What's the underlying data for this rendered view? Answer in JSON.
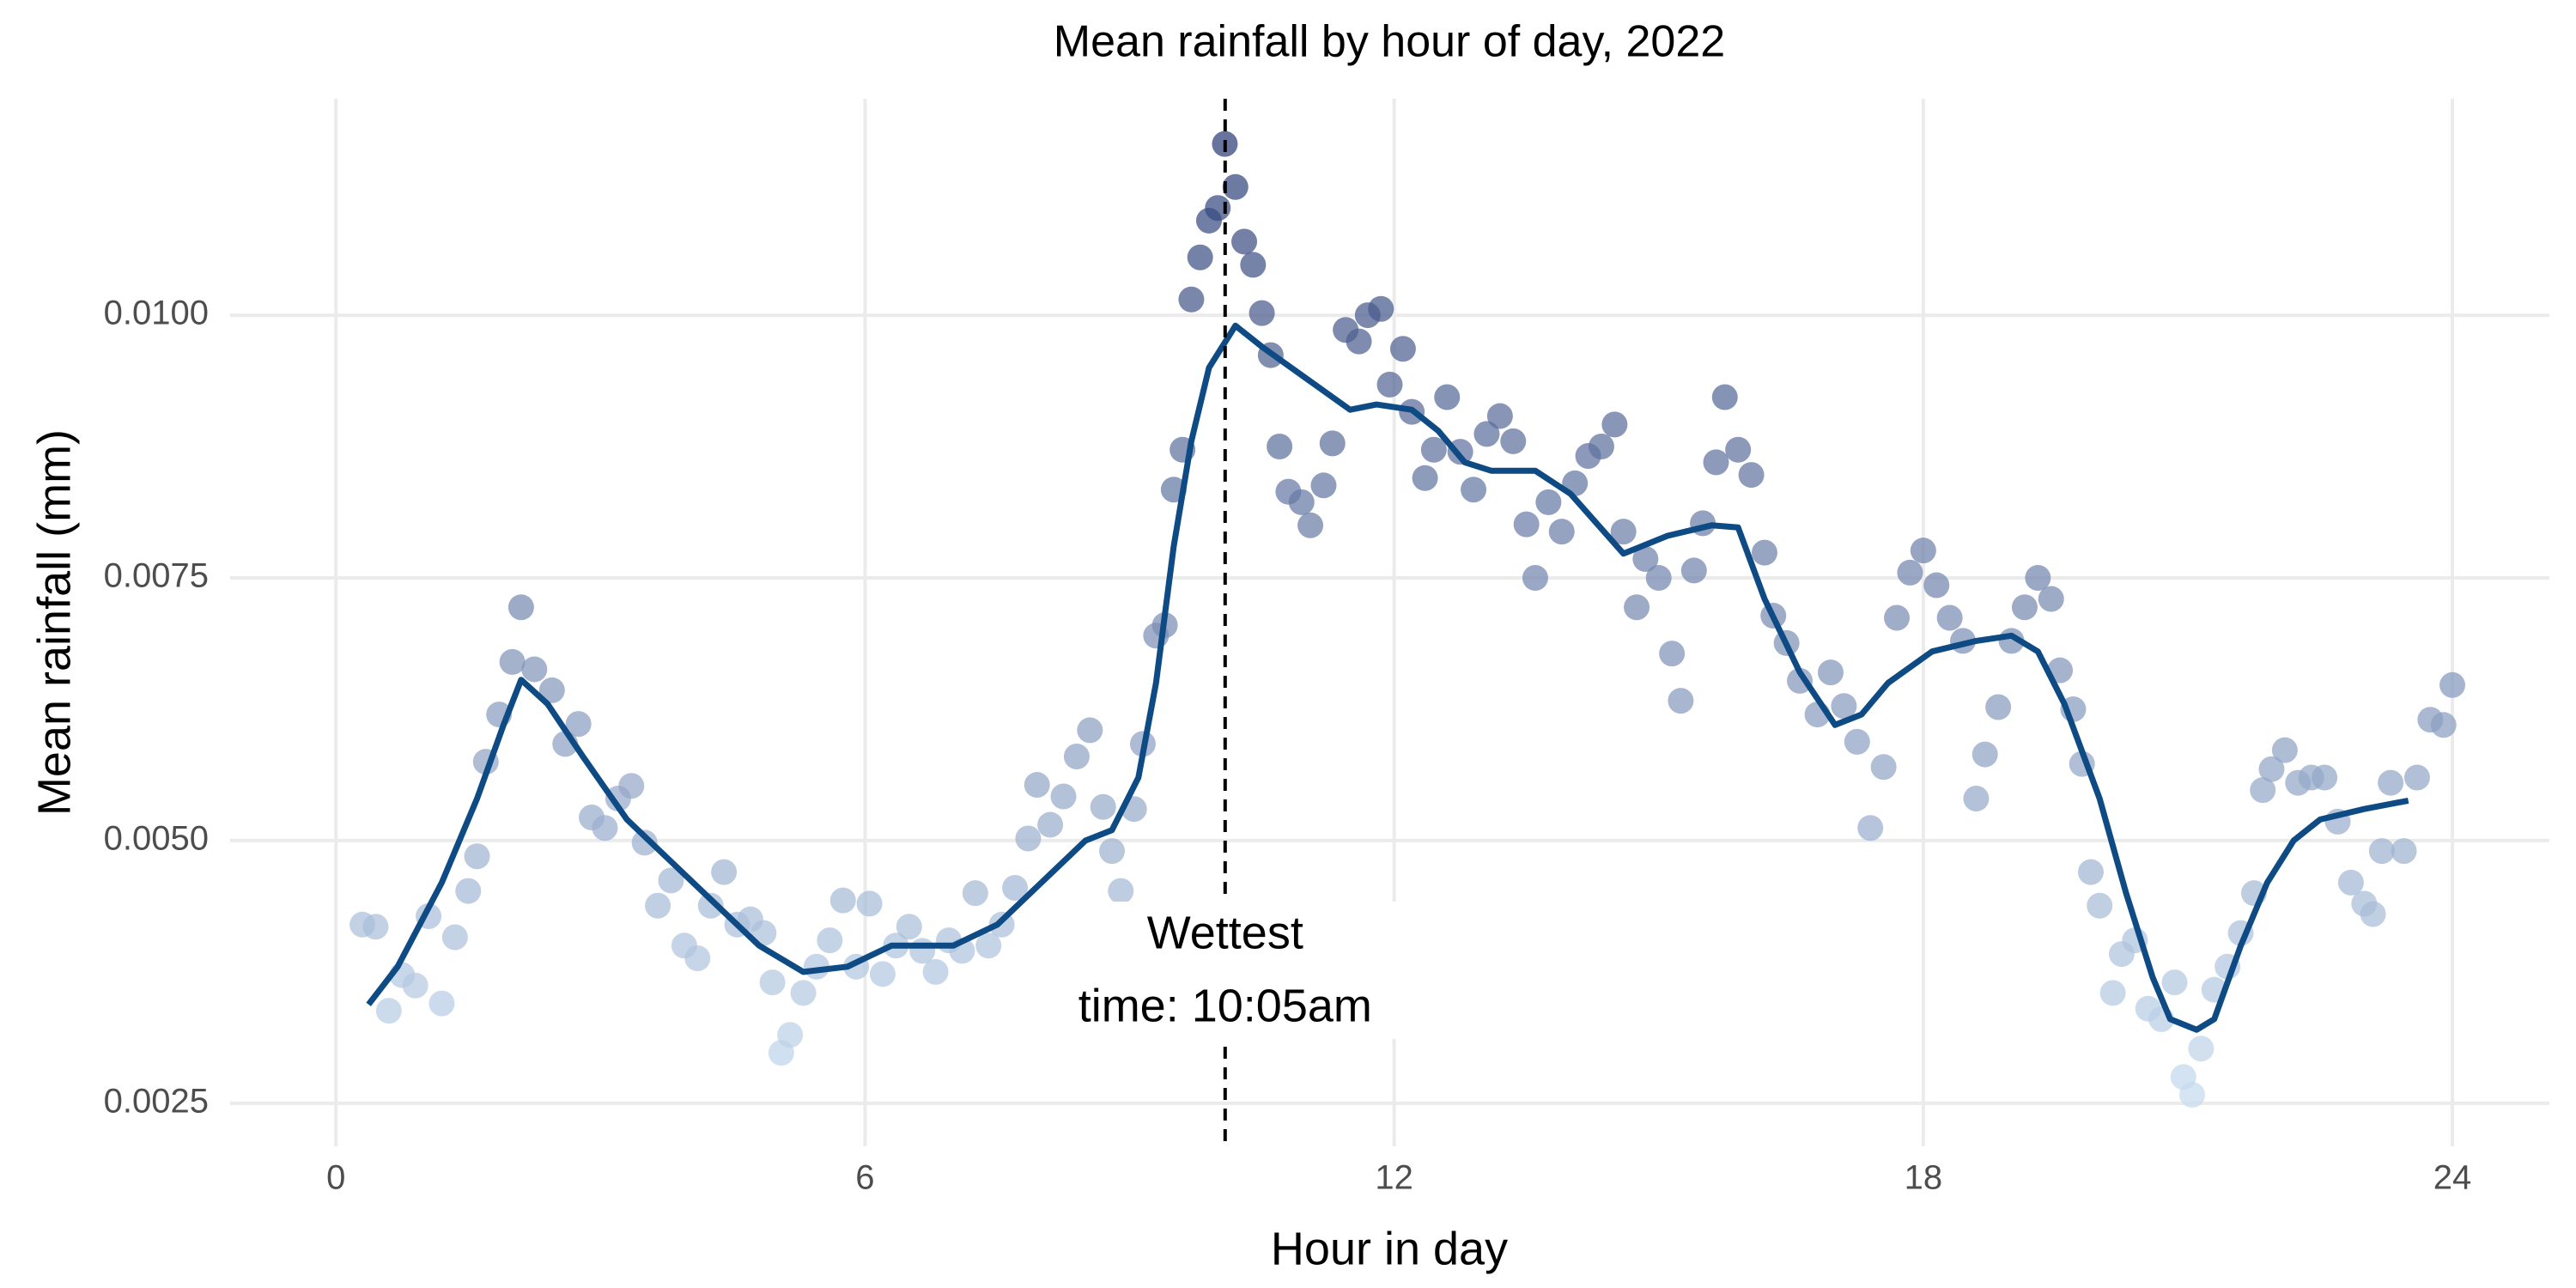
{
  "chart_data": {
    "type": "scatter",
    "title": "Mean rainfall by hour of day, 2022",
    "x_label": "Hour in day",
    "y_label": "Mean rainfall (mm)",
    "xlim": [
      -1.2,
      25.1
    ],
    "ylim": [
      0.00209,
      0.01206
    ],
    "xticks": [
      0,
      6,
      12,
      18,
      24
    ],
    "yticks": [
      0.0025,
      {
        "value": 0.005,
        "label": "0.0050"
      },
      0.0075,
      {
        "value": 0.01,
        "label": "0.0100"
      }
    ],
    "grid": true,
    "color_scale": {
      "low": "#c6dbef",
      "high": "#2e3f78"
    },
    "x": [
      0.3,
      0.45,
      0.6,
      0.75,
      0.9,
      1.05,
      1.2,
      1.35,
      1.5,
      1.6,
      1.7,
      1.85,
      2.0,
      2.1,
      2.25,
      2.45,
      2.6,
      2.75,
      2.9,
      3.05,
      3.2,
      3.35,
      3.5,
      3.65,
      3.8,
      3.95,
      4.1,
      4.25,
      4.4,
      4.55,
      4.7,
      4.85,
      4.95,
      5.05,
      5.15,
      5.3,
      5.45,
      5.6,
      5.75,
      5.9,
      6.05,
      6.2,
      6.35,
      6.5,
      6.65,
      6.8,
      6.95,
      7.1,
      7.25,
      7.4,
      7.55,
      7.7,
      7.85,
      7.95,
      8.1,
      8.25,
      8.4,
      8.55,
      8.7,
      8.8,
      8.9,
      9.05,
      9.15,
      9.3,
      9.4,
      9.5,
      9.6,
      9.7,
      9.8,
      9.9,
      10.0,
      10.08,
      10.2,
      10.3,
      10.4,
      10.5,
      10.6,
      10.7,
      10.8,
      10.95,
      11.05,
      11.2,
      11.3,
      11.45,
      11.6,
      11.7,
      11.85,
      11.95,
      12.1,
      12.2,
      12.35,
      12.45,
      12.6,
      12.75,
      12.9,
      13.05,
      13.2,
      13.35,
      13.5,
      13.6,
      13.75,
      13.9,
      14.05,
      14.2,
      14.35,
      14.5,
      14.6,
      14.75,
      14.85,
      15.0,
      15.15,
      15.25,
      15.4,
      15.5,
      15.65,
      15.75,
      15.9,
      16.05,
      16.2,
      16.3,
      16.45,
      16.6,
      16.8,
      16.95,
      17.1,
      17.25,
      17.4,
      17.55,
      17.7,
      17.85,
      18.0,
      18.15,
      18.3,
      18.45,
      18.6,
      18.7,
      18.85,
      19.0,
      19.15,
      19.3,
      19.45,
      19.55,
      19.7,
      19.8,
      19.9,
      20.0,
      20.15,
      20.25,
      20.4,
      20.55,
      20.7,
      20.85,
      20.95,
      21.05,
      21.15,
      21.3,
      21.45,
      21.6,
      21.75,
      21.85,
      21.95,
      22.1,
      22.25,
      22.4,
      22.55,
      22.7,
      22.85,
      23.0,
      23.1,
      23.2,
      23.3,
      23.45,
      23.6,
      23.75,
      23.9,
      24.0
    ],
    "values": [
      0.0042,
      0.00418,
      0.00338,
      0.00372,
      0.00362,
      0.00428,
      0.00345,
      0.00408,
      0.00452,
      0.00485,
      0.00575,
      0.0062,
      0.0067,
      0.00722,
      0.00663,
      0.00643,
      0.00592,
      0.00611,
      0.00522,
      0.00512,
      0.0054,
      0.00552,
      0.00498,
      0.00438,
      0.00462,
      0.004,
      0.00388,
      0.00438,
      0.0047,
      0.0042,
      0.00425,
      0.00412,
      0.00365,
      0.00298,
      0.00315,
      0.00355,
      0.0038,
      0.00405,
      0.00443,
      0.0038,
      0.0044,
      0.00373,
      0.004,
      0.00418,
      0.00395,
      0.00375,
      0.00405,
      0.00395,
      0.0045,
      0.004,
      0.0042,
      0.00455,
      0.00502,
      0.00553,
      0.00515,
      0.00542,
      0.0058,
      0.00605,
      0.00532,
      0.0049,
      0.00452,
      0.0053,
      0.00592,
      0.00695,
      0.00705,
      0.00834,
      0.00872,
      0.01015,
      0.01055,
      0.0109,
      0.01102,
      0.01163,
      0.01122,
      0.0107,
      0.01048,
      0.01002,
      0.00962,
      0.00875,
      0.00832,
      0.00822,
      0.008,
      0.00838,
      0.00878,
      0.00986,
      0.00975,
      0.01,
      0.01006,
      0.00934,
      0.00968,
      0.00908,
      0.00845,
      0.00872,
      0.00922,
      0.0087,
      0.00834,
      0.00887,
      0.00904,
      0.0088,
      0.00801,
      0.0075,
      0.00822,
      0.00794,
      0.0084,
      0.00866,
      0.00875,
      0.00896,
      0.00794,
      0.00722,
      0.00768,
      0.0075,
      0.00678,
      0.00633,
      0.00757,
      0.00802,
      0.0086,
      0.00922,
      0.00872,
      0.00848,
      0.00774,
      0.00714,
      0.00688,
      0.00652,
      0.0062,
      0.0066,
      0.00628,
      0.00594,
      0.00512,
      0.0057,
      0.00712,
      0.00755,
      0.00776,
      0.00743,
      0.00712,
      0.0069,
      0.0054,
      0.00582,
      0.00627,
      0.0069,
      0.00722,
      0.0075,
      0.0073,
      0.00662,
      0.00625,
      0.00573,
      0.0047,
      0.00438,
      0.00355,
      0.00392,
      0.00405,
      0.0034,
      0.0033,
      0.00365,
      0.00275,
      0.00258,
      0.00302,
      0.00358,
      0.0038,
      0.00412,
      0.0045,
      0.00548,
      0.00568,
      0.00586,
      0.00555,
      0.0056,
      0.0056,
      0.00518,
      0.0046,
      0.0044,
      0.0043,
      0.0049,
      0.00555,
      0.0049,
      0.0056,
      0.00615,
      0.0061,
      0.00648
    ],
    "smooth": {
      "color": "#0e4a84",
      "x": [
        0.37,
        0.7,
        1.2,
        1.6,
        1.9,
        2.1,
        2.4,
        2.8,
        3.3,
        3.8,
        4.3,
        4.8,
        5.3,
        5.8,
        6.3,
        7.0,
        7.5,
        8.0,
        8.5,
        8.8,
        9.1,
        9.3,
        9.5,
        9.7,
        9.9,
        10.2,
        10.5,
        11.0,
        11.5,
        11.8,
        12.2,
        12.5,
        12.8,
        13.1,
        13.6,
        14.0,
        14.6,
        15.1,
        15.6,
        15.9,
        16.2,
        16.6,
        17.0,
        17.3,
        17.6,
        18.1,
        18.6,
        19.0,
        19.3,
        19.6,
        20.0,
        20.3,
        20.6,
        20.8,
        21.1,
        21.3,
        21.6,
        21.9,
        22.2,
        22.5,
        23.0,
        23.5
      ],
      "values": [
        0.00344,
        0.0038,
        0.0046,
        0.0054,
        0.0061,
        0.00653,
        0.0063,
        0.0058,
        0.0052,
        0.0048,
        0.0044,
        0.004,
        0.00375,
        0.0038,
        0.004,
        0.004,
        0.0042,
        0.0046,
        0.005,
        0.0051,
        0.0056,
        0.0065,
        0.0078,
        0.0088,
        0.0095,
        0.0099,
        0.0097,
        0.0094,
        0.0091,
        0.00915,
        0.0091,
        0.0089,
        0.0086,
        0.00852,
        0.00852,
        0.0083,
        0.00773,
        0.0079,
        0.008,
        0.00798,
        0.0073,
        0.0066,
        0.0061,
        0.0062,
        0.0065,
        0.0068,
        0.0069,
        0.00695,
        0.0068,
        0.0063,
        0.0054,
        0.0045,
        0.0037,
        0.0033,
        0.0032,
        0.0033,
        0.004,
        0.0046,
        0.005,
        0.0052,
        0.0053,
        0.00538
      ]
    },
    "annotation": {
      "x": 10.0833,
      "lines": [
        "Wettest",
        "time: 10:05am"
      ]
    }
  }
}
